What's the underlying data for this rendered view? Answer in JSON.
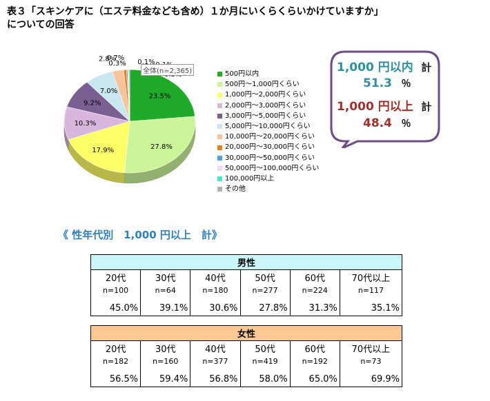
{
  "title": {
    "line1": "表３「スキンケアに（エステ料金なども含め）１か月にいくらくらいかけていますか」",
    "line2": "についての回答"
  },
  "chart_data": {
    "type": "pie",
    "label": "全体(n=2,365)",
    "slices": [
      {
        "name": "500円以内",
        "value": 23.5,
        "label": "23.5%",
        "color": "#1faa2a"
      },
      {
        "name": "500円～1,000円くらい",
        "value": 27.8,
        "label": "27.8%",
        "color": "#ccf59a"
      },
      {
        "name": "1,000円～2,000円くらい",
        "value": 17.9,
        "label": "17.9%",
        "color": "#ffff66"
      },
      {
        "name": "2,000円～3,000円くらい",
        "value": 10.3,
        "label": "10.3%",
        "color": "#d9b7dd"
      },
      {
        "name": "3,000円～5,000円くらい",
        "value": 9.2,
        "label": "9.2%",
        "color": "#7a5f93"
      },
      {
        "name": "5,000円～10,000円くらい",
        "value": 7.0,
        "label": "7.0%",
        "color": "#c9e7f0"
      },
      {
        "name": "10,000円～20,000円くらい",
        "value": 2.8,
        "label": "2.8%",
        "color": "#f7c39b"
      },
      {
        "name": "20,000円～30,000円くらい",
        "value": 0.7,
        "label": "0.7%",
        "color": "#f07f13"
      },
      {
        "name": "30,000円～50,000円くらい",
        "value": 0.3,
        "label": "0.3%",
        "color": "#4ea2d6"
      },
      {
        "name": "50,000円～100,000円くらい",
        "value": 0.1,
        "label": "0.1%",
        "color": "#f4d8f6"
      },
      {
        "name": "100,000円以上",
        "value": 0.1,
        "label": "0.1%",
        "color": "#4ee8c8"
      },
      {
        "name": "その他",
        "value": 0.3,
        "label": "0.3%",
        "color": "#b0b0b0"
      }
    ]
  },
  "callout": {
    "row1_label": "1,000 円以内",
    "row1_suffix": "計",
    "row1_value": "51.3",
    "row1_unit": "％",
    "row2_label": "1,000 円以上",
    "row2_suffix": "計",
    "row2_value": "48.4",
    "row2_unit": "％",
    "color1": "#2f8fa0",
    "color2": "#a0302a",
    "border_color": "#6b4a85"
  },
  "subheading": "《 性年代別　1,000 円以上　計》",
  "tables": {
    "male": {
      "header": "男性",
      "color": "#ccf7fa",
      "ages": [
        "20代",
        "30代",
        "40代",
        "50代",
        "60代",
        "70代以上"
      ],
      "n": [
        "n=100",
        "n=64",
        "n=180",
        "n=277",
        "n=224",
        "n=117"
      ],
      "pct": [
        "45.0%",
        "39.1%",
        "30.6%",
        "27.8%",
        "31.3%",
        "35.1%"
      ]
    },
    "female": {
      "header": "女性",
      "color": "#fcc995",
      "ages": [
        "20代",
        "30代",
        "40代",
        "50代",
        "60代",
        "70代以上"
      ],
      "n": [
        "n=182",
        "n=160",
        "n=377",
        "n=419",
        "n=192",
        "n=73"
      ],
      "pct": [
        "56.5%",
        "59.4%",
        "56.8%",
        "58.0%",
        "65.0%",
        "69.9%"
      ]
    }
  }
}
